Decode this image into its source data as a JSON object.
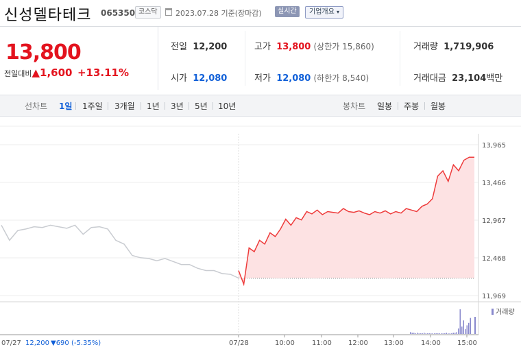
{
  "header": {
    "name": "신성델타테크",
    "code": "065350",
    "market": "코스닥",
    "date_text": "2023.07.28 기준(장마감)",
    "live_label": "실시간",
    "company_label": "기업개요"
  },
  "price": {
    "current": "13,800",
    "change_label": "전일대비",
    "change_value": "▲1,600",
    "change_pct": "+13.11%"
  },
  "stats": {
    "prev_close_label": "전일",
    "prev_close": "12,200",
    "open_label": "시가",
    "open": "12,080",
    "high_label": "고가",
    "high": "13,800",
    "upper_limit": "(상한가 15,860)",
    "low_label": "저가",
    "low": "12,080",
    "lower_limit": "(하한가 8,540)",
    "volume_label": "거래량",
    "volume": "1,719,906",
    "amount_label": "거래대금",
    "amount": "23,104",
    "amount_unit": "백만"
  },
  "tabs": {
    "line_label": "선차트",
    "line_periods": [
      "1일",
      "1주일",
      "3개월",
      "1년",
      "3년",
      "5년",
      "10년"
    ],
    "selected_period": "1일",
    "candle_label": "봉차트",
    "candle_periods": [
      "일봉",
      "주봉",
      "월봉"
    ]
  },
  "chart_data": {
    "type": "line",
    "ylim": [
      11969,
      13965
    ],
    "y_ticks": [
      "13,965",
      "13,466",
      "12,967",
      "12,468",
      "11,969"
    ],
    "x_ticks": [
      "07/28",
      "10:00",
      "11:00",
      "12:00",
      "13:00",
      "14:00",
      "15:00"
    ],
    "prev_day_label": "07/27",
    "prev_day_close": "12,200",
    "prev_day_change": "▼690 (-5.35%)",
    "volume_label": "거래량",
    "base_price": 12200,
    "colors": {
      "up": "#ee3b3b",
      "fill": "#fde2e3",
      "prev": "#c9ccd1",
      "volume": "#8888cc"
    },
    "series": [
      {
        "values": [
          12300,
          12120,
          12600,
          12550,
          12700,
          12650,
          12800,
          12750,
          12850,
          12980,
          12900,
          13000,
          12970,
          13080,
          13050,
          13100,
          13040,
          13080,
          13070,
          13060,
          13120,
          13080,
          13070,
          13090,
          13060,
          13040,
          13080,
          13060,
          13090,
          13050,
          13080,
          13060,
          13120,
          13100,
          13080,
          13150,
          13180,
          13250,
          13550,
          13620,
          13480,
          13700,
          13620,
          13760,
          13800,
          13800
        ]
      }
    ],
    "prev_values": [
      12900,
      12700,
      12830,
      12850,
      12880,
      12870,
      12900,
      12880,
      12860,
      12900,
      12780,
      12870,
      12880,
      12850,
      12700,
      12650,
      12500,
      12470,
      12460,
      12430,
      12460,
      12420,
      12380,
      12380,
      12330,
      12300,
      12300,
      12260,
      12250,
      12200
    ]
  }
}
